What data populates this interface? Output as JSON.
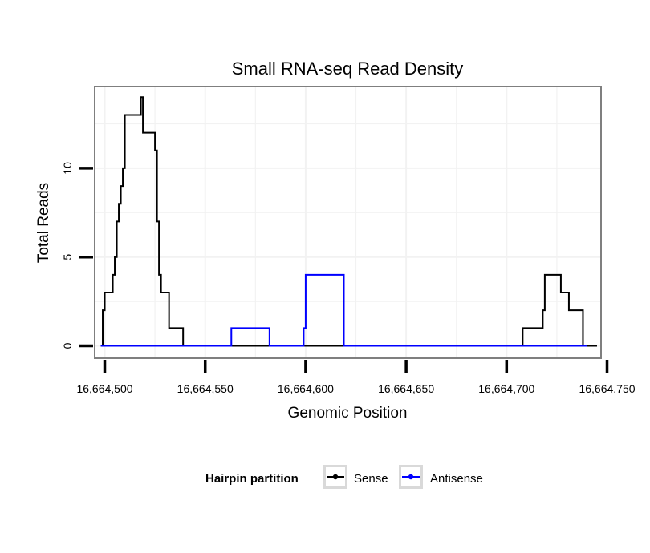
{
  "chart_data": {
    "type": "line",
    "title": "Small RNA-seq Read Density",
    "xlabel": "Genomic Position",
    "ylabel": "Total Reads",
    "xlim": [
      16664495,
      16664747
    ],
    "ylim": [
      -0.7,
      14.6
    ],
    "x_ticks": [
      16664500,
      16664550,
      16664600,
      16664650,
      16664700,
      16664750
    ],
    "x_tick_labels": [
      "16,664,500",
      "16,664,550",
      "16,664,600",
      "16,664,650",
      "16,664,700",
      "16,664,750"
    ],
    "y_ticks": [
      0,
      5,
      10
    ],
    "y_tick_labels": [
      "0",
      "5",
      "10"
    ],
    "grid": true,
    "legend": {
      "title": "Hairpin partition",
      "placement": "bottom",
      "entries": [
        "Sense",
        "Antisense"
      ]
    },
    "series": [
      {
        "name": "Sense",
        "color": "#000000",
        "step": true,
        "x": [
          16664498,
          16664499,
          16664500,
          16664504,
          16664505,
          16664506,
          16664507,
          16664508,
          16664509,
          16664510,
          16664513,
          16664518,
          16664519,
          16664521,
          16664525,
          16664526,
          16664527,
          16664528,
          16664530,
          16664532,
          16664535,
          16664539,
          16664540,
          16664708,
          16664709,
          16664718,
          16664719,
          16664721,
          16664727,
          16664731,
          16664734,
          16664738,
          16664739,
          16664745
        ],
        "values": [
          0,
          2,
          3,
          4,
          5,
          7,
          8,
          9,
          10,
          13,
          13,
          14,
          12,
          12,
          11,
          7,
          4,
          3,
          3,
          1,
          1,
          0,
          0,
          1,
          1,
          2,
          4,
          4,
          3,
          2,
          2,
          0,
          0,
          0
        ]
      },
      {
        "name": "Antisense",
        "color": "#0000ff",
        "step": true,
        "x": [
          16664498,
          16664563,
          16664582,
          16664599,
          16664600,
          16664619,
          16664708,
          16664740
        ],
        "values": [
          0,
          1,
          0,
          1,
          4,
          0,
          0,
          0
        ]
      }
    ]
  }
}
